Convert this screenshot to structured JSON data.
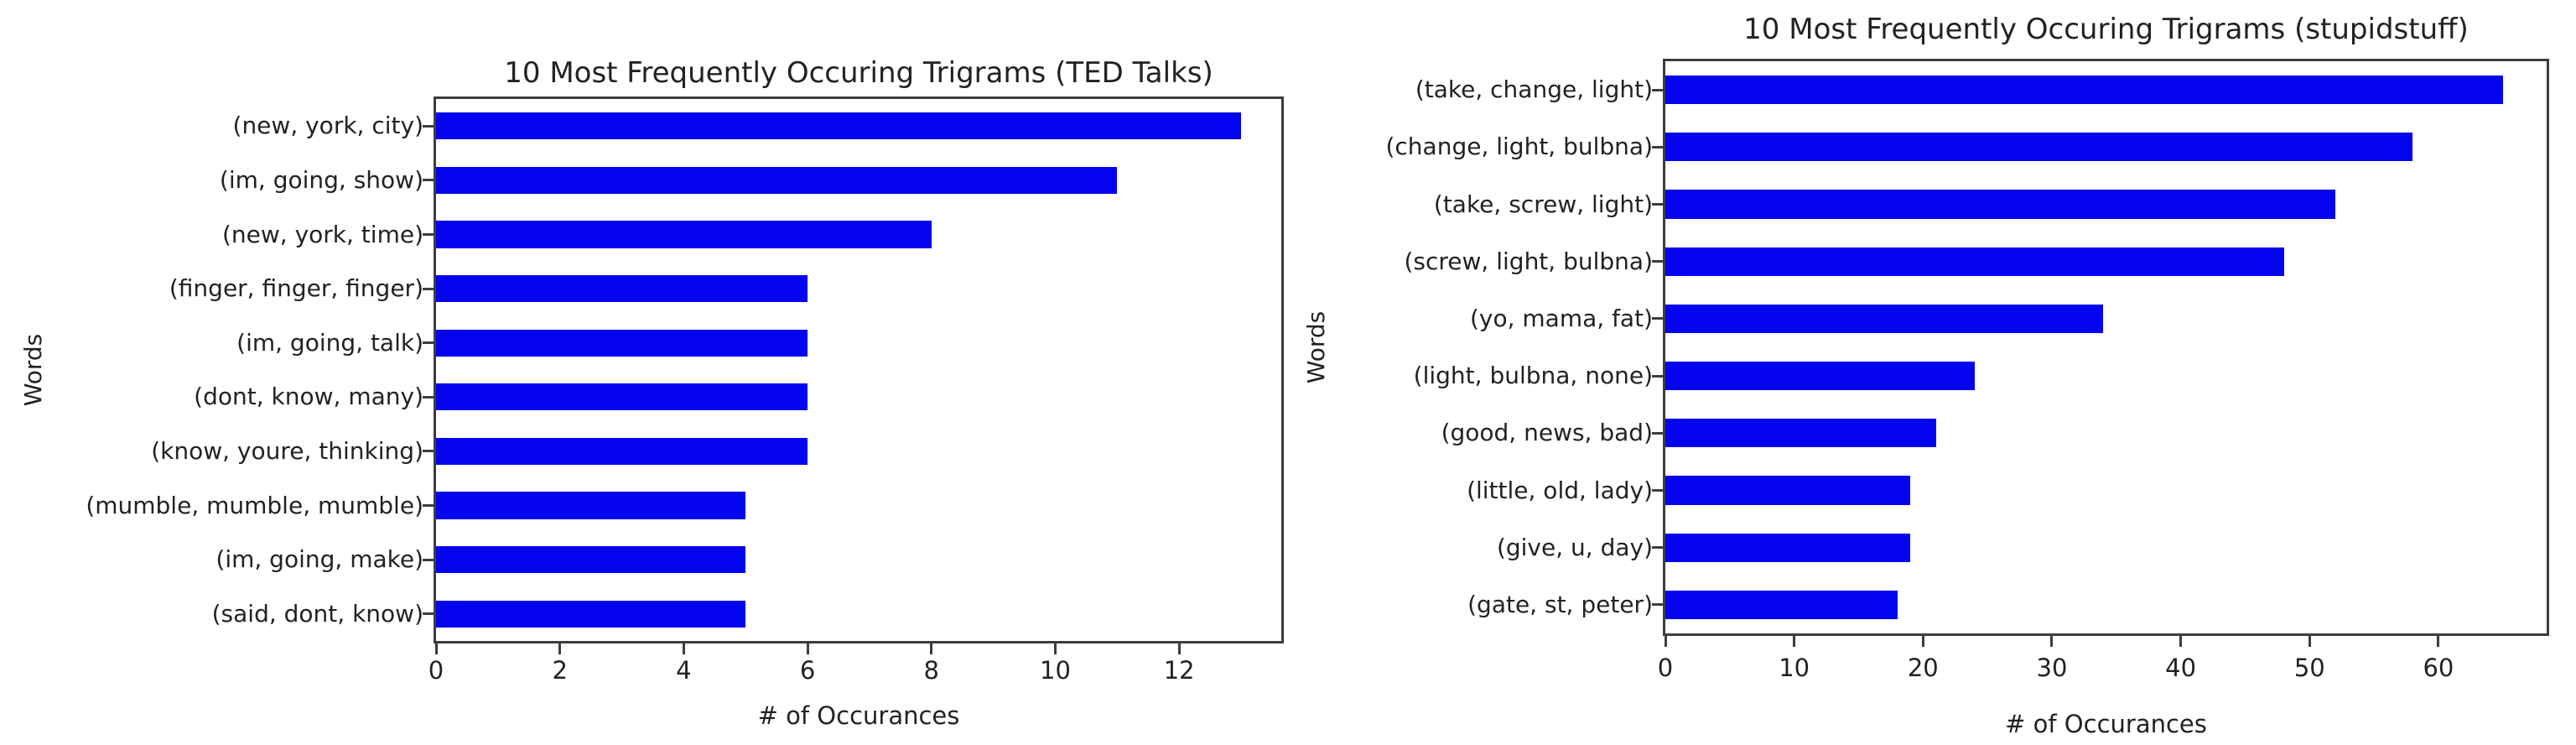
{
  "colors": {
    "bar": "#0303f0",
    "axis": "#3d3d3d",
    "text": "#222222",
    "background": "#ffffff"
  },
  "chart_data": [
    {
      "type": "bar",
      "orientation": "horizontal",
      "title": "10 Most Frequently Occuring Trigrams (TED Talks)",
      "xlabel": "# of Occurances",
      "ylabel": "Words",
      "categories": [
        "(new, york, city)",
        "(im, going, show)",
        "(new, york, time)",
        "(finger, finger, finger)",
        "(im, going, talk)",
        "(dont, know, many)",
        "(know, youre, thinking)",
        "(mumble, mumble, mumble)",
        "(im, going, make)",
        "(said, dont, know)"
      ],
      "values": [
        13,
        11,
        8,
        6,
        6,
        6,
        6,
        5,
        5,
        5
      ],
      "xticks": [
        0,
        2,
        4,
        6,
        8,
        10,
        12
      ],
      "xlim": [
        0,
        13.65
      ],
      "bar_color": "#0303f0",
      "grid": false,
      "legend": "none"
    },
    {
      "type": "bar",
      "orientation": "horizontal",
      "title": "10 Most Frequently Occuring Trigrams (stupidstuff)",
      "xlabel": "# of Occurances",
      "ylabel": "Words",
      "categories": [
        "(take, change, light)",
        "(change, light, bulbna)",
        "(take, screw, light)",
        "(screw, light, bulbna)",
        "(yo, mama, fat)",
        "(light, bulbna, none)",
        "(good, news, bad)",
        "(little, old, lady)",
        "(give, u, day)",
        "(gate, st, peter)"
      ],
      "values": [
        65,
        58,
        52,
        48,
        34,
        24,
        21,
        19,
        19,
        18
      ],
      "xticks": [
        0,
        10,
        20,
        30,
        40,
        50,
        60
      ],
      "xlim": [
        0,
        68.4
      ],
      "bar_color": "#0303f0",
      "grid": false,
      "legend": "none"
    }
  ]
}
